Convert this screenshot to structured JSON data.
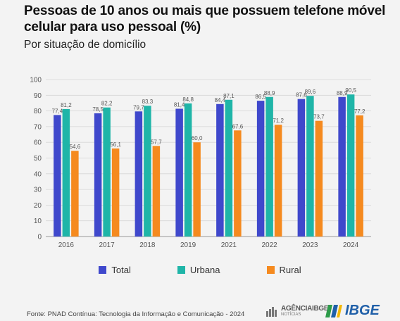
{
  "header": {
    "title": "Pessoas de 10 anos ou mais que possuem telefone móvel celular para uso pessoal (%)",
    "subtitle": "Por situação de domicílio"
  },
  "footer": {
    "source": "Fonte: PNAD Contínua: Tecnologia da Informação e Comunicação - 2024",
    "agencia_logo_main": "AGÊNCIAIBGE",
    "agencia_logo_sub": "NOTÍCIAS",
    "ibge_logo": "IBGE"
  },
  "chart_data": {
    "type": "bar",
    "title": "Pessoas de 10 anos ou mais que possuem telefone móvel celular para uso pessoal (%)",
    "subtitle": "Por situação de domicílio",
    "categories": [
      "2016",
      "2017",
      "2018",
      "2019",
      "2021",
      "2022",
      "2023",
      "2024"
    ],
    "series": [
      {
        "name": "Total",
        "color": "#3f48cc",
        "values": [
          77.4,
          78.5,
          79.7,
          81.4,
          84.4,
          86.5,
          87.6,
          88.9
        ],
        "labels": [
          "77,4",
          "78,5",
          "79,7",
          "81,4",
          "84,4",
          "86,5",
          "87,6",
          "88,9"
        ]
      },
      {
        "name": "Urbana",
        "color": "#1fb5a8",
        "values": [
          81.2,
          82.2,
          83.3,
          84.8,
          87.1,
          88.9,
          89.6,
          90.5
        ],
        "labels": [
          "81,2",
          "82,2",
          "83,3",
          "84,8",
          "87,1",
          "88,9",
          "89,6",
          "90,5"
        ]
      },
      {
        "name": "Rural",
        "color": "#f58a1f",
        "values": [
          54.6,
          56.1,
          57.7,
          60.0,
          67.6,
          71.2,
          73.7,
          77.2
        ],
        "labels": [
          "54,6",
          "56,1",
          "57,7",
          "60,0",
          "67,6",
          "71,2",
          "73,7",
          "77,2"
        ]
      }
    ],
    "ylim": [
      0,
      100
    ],
    "yticks": [
      0,
      10,
      20,
      30,
      40,
      50,
      60,
      70,
      80,
      90,
      100
    ],
    "grid": true,
    "legend_position": "bottom"
  }
}
